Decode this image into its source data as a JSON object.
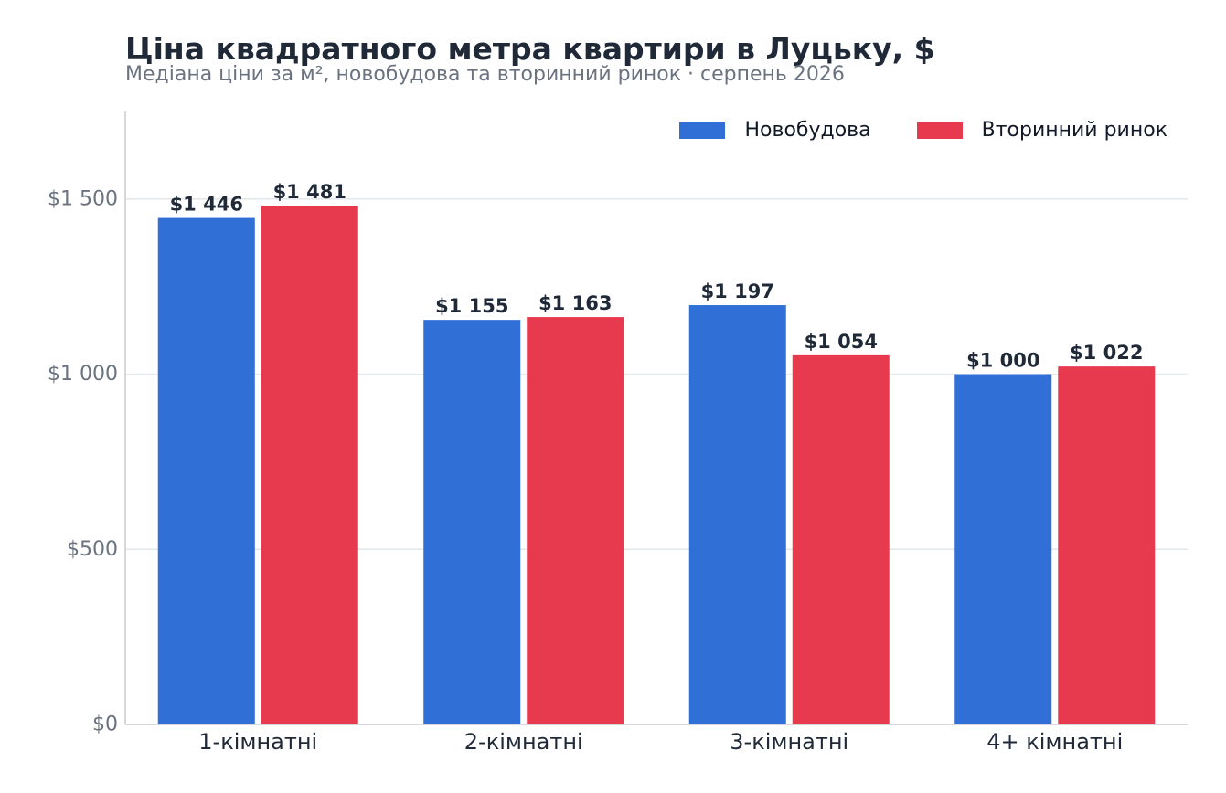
{
  "header": {
    "title": "Ціна квадратного метра квартири в Луцьку, $",
    "subtitle": "Медіана ціни за м², новобудова та вторинний ринок · серпень 2026"
  },
  "colors": {
    "new": "#2f6fd6",
    "secondary": "#e83a4e",
    "axis": "#c8ccd2",
    "grid": "#e3e6ea",
    "tick_text": "#6b7280",
    "category_text": "#1f2937",
    "label_text": "#1f2937"
  },
  "chart_data": {
    "type": "bar",
    "title": "Ціна квадратного метра квартири в Луцьку, $",
    "subtitle": "Медіана ціни за м², новобудова та вторинний ринок · серпень 2026",
    "categories": [
      "1-кімнатні",
      "2-кімнатні",
      "3-кімнатні",
      "4+ кімнатні"
    ],
    "series": [
      {
        "name": "Новобудова",
        "values": [
          1446,
          1155,
          1197,
          1000
        ],
        "labels": [
          "$1 446",
          "$1 155",
          "$1 197",
          "$1 000"
        ]
      },
      {
        "name": "Вторинний ринок",
        "values": [
          1481,
          1163,
          1054,
          1022
        ],
        "labels": [
          "$1 481",
          "$1 163",
          "$1 054",
          "$1 022"
        ]
      }
    ],
    "yticks": [
      0,
      500,
      1000,
      1500
    ],
    "ytick_labels": [
      "$0",
      "$500",
      "$1 000",
      "$1 500"
    ],
    "ylim": [
      0,
      1750
    ],
    "grid": true,
    "legend_position": "top-right"
  }
}
